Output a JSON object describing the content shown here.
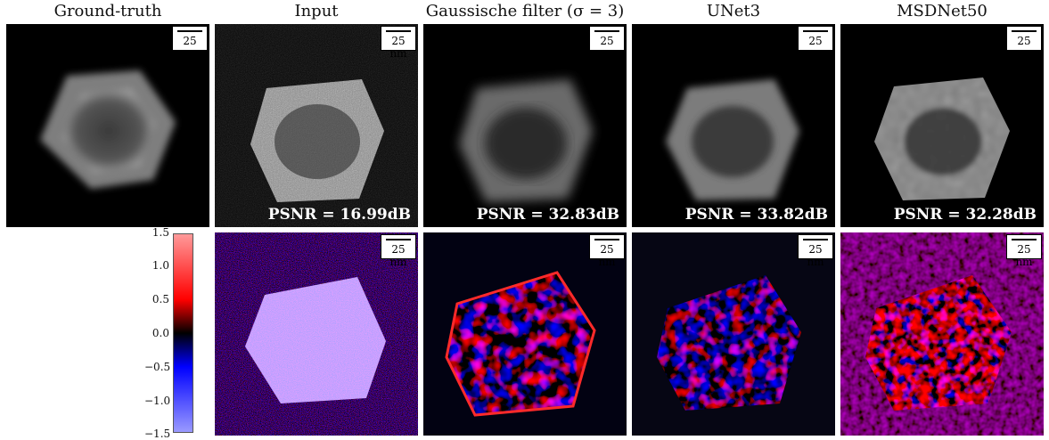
{
  "columns": [
    {
      "title": "Ground-truth",
      "psnr": null
    },
    {
      "title": "Input",
      "psnr": "PSNR = 16.99dB"
    },
    {
      "title": "Gaussische filter (σ = 3)",
      "psnr": "PSNR = 32.83dB"
    },
    {
      "title": "UNet3",
      "psnr": "PSNR = 33.82dB"
    },
    {
      "title": "MSDNet50",
      "psnr": "PSNR = 32.28dB"
    }
  ],
  "scalebar_label": "25 nm",
  "colorbar": {
    "ticks": [
      "1.5",
      "1.0",
      "0.5",
      "0.0",
      "−0.5",
      "−1.0",
      "−1.5"
    ],
    "colors": {
      "max": "#ff9a9a",
      "high": "#ff0000",
      "zero": "#000000",
      "low": "#0000ff",
      "min": "#9a9aff"
    }
  },
  "colors": {
    "background": "#000000",
    "particle": "#8c8c8c",
    "text_overlay": "#ffffff"
  }
}
